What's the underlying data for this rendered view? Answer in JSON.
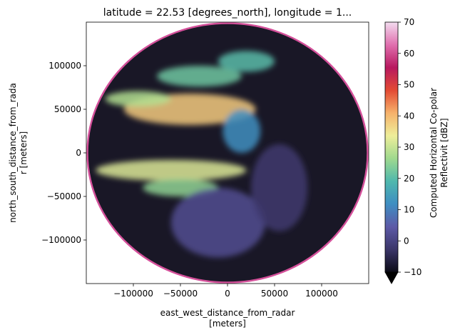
{
  "chart_data": {
    "type": "heatmap",
    "title": "latitude = 22.53 [degrees_north], longitude = 1...",
    "xlabel_line1": "east_west_distance_from_radar",
    "xlabel_line2": "[meters]",
    "ylabel_line1": "north_south_distance_from_rada",
    "ylabel_line2": "r [meters]",
    "xlim": [
      -150000,
      150000
    ],
    "ylim": [
      -150000,
      150000
    ],
    "x_ticks": [
      -100000,
      -50000,
      0,
      50000,
      100000
    ],
    "x_tick_labels": [
      "−100000",
      "−50000",
      "0",
      "50000",
      "100000"
    ],
    "y_ticks": [
      100000,
      50000,
      0,
      -50000,
      -100000
    ],
    "y_tick_labels": [
      "100000",
      "50000",
      "0",
      "−50000",
      "−100000"
    ],
    "radar_range_max": 150000,
    "colorbar": {
      "label_line1": "Computed Horizontal Co-polar",
      "label_line2": "Reflectivit [dBZ]",
      "vmin": -10,
      "vmax": 70,
      "extend": "min",
      "ticks": [
        70,
        60,
        50,
        40,
        30,
        20,
        10,
        0,
        -10
      ],
      "tick_labels": [
        "70",
        "60",
        "50",
        "40",
        "30",
        "20",
        "10",
        "0",
        "−10"
      ],
      "colormap": "spectral-style",
      "colormap_stops": [
        "#0b0b16",
        "#3b3669",
        "#5d5aa7",
        "#3f8ec2",
        "#4fb8ad",
        "#9fd98e",
        "#eeee9a",
        "#f6b26b",
        "#e34a33",
        "#b8185f",
        "#e06fae",
        "#f3dcef"
      ]
    },
    "echo_regions": [
      {
        "x": -40000,
        "y": 50000,
        "rx": 70000,
        "ry": 18000,
        "dbz": 38
      },
      {
        "x": -95000,
        "y": 62000,
        "rx": 35000,
        "ry": 9000,
        "dbz": 28
      },
      {
        "x": -30000,
        "y": 88000,
        "rx": 45000,
        "ry": 12000,
        "dbz": 22
      },
      {
        "x": 20000,
        "y": 105000,
        "rx": 30000,
        "ry": 12000,
        "dbz": 20
      },
      {
        "x": -60000,
        "y": -20000,
        "rx": 80000,
        "ry": 12000,
        "dbz": 32
      },
      {
        "x": -50000,
        "y": -40000,
        "rx": 40000,
        "ry": 10000,
        "dbz": 25
      },
      {
        "x": 15000,
        "y": 25000,
        "rx": 20000,
        "ry": 25000,
        "dbz": 12
      },
      {
        "x": -10000,
        "y": -80000,
        "rx": 50000,
        "ry": 40000,
        "dbz": 2
      },
      {
        "x": 55000,
        "y": -40000,
        "rx": 30000,
        "ry": 50000,
        "dbz": -2
      }
    ]
  }
}
